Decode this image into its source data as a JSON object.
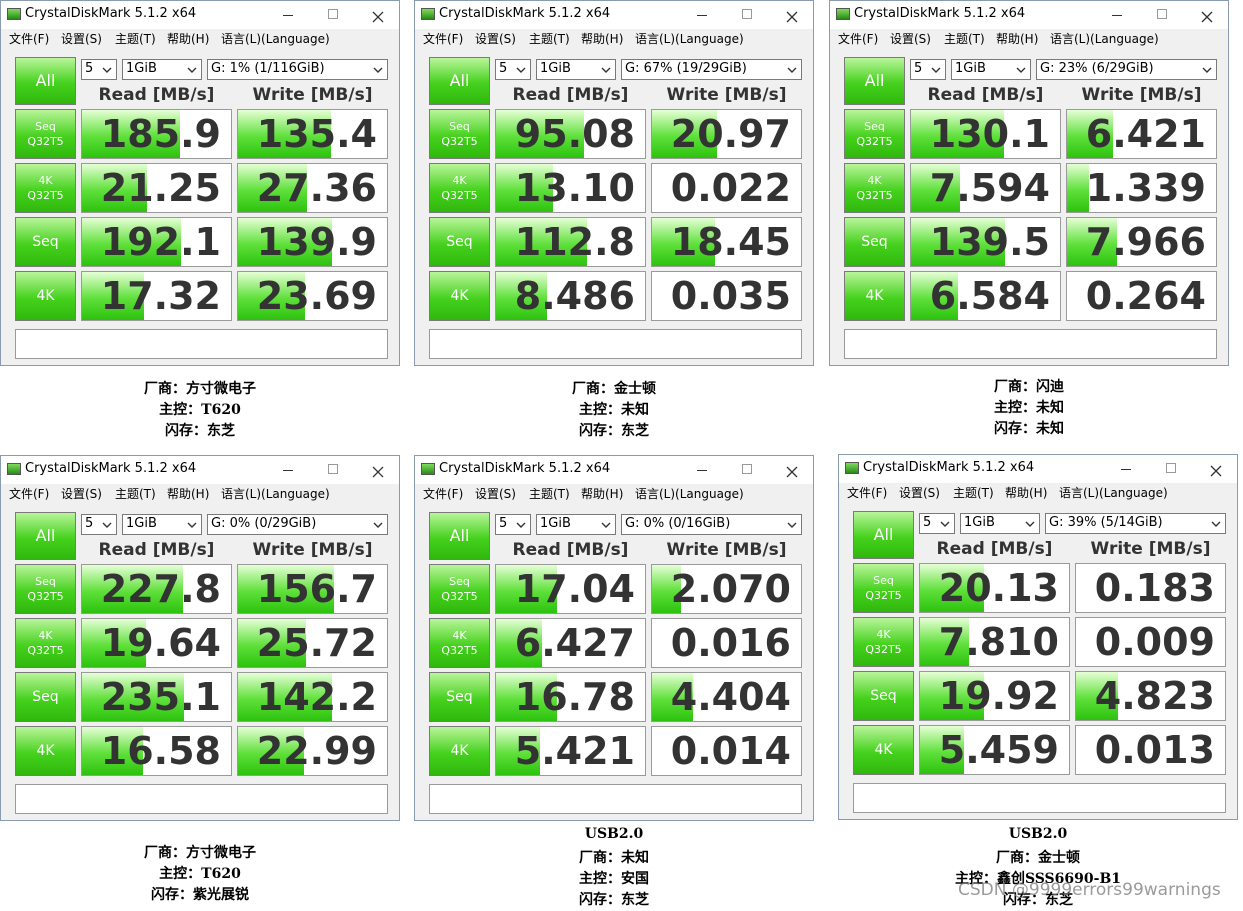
{
  "app": {
    "title": "CrystalDiskMark 5.1.2 x64",
    "menu": [
      "文件(F)",
      "设置(S)",
      "主题(T)",
      "帮助(H)",
      "语言(L)(Language)"
    ],
    "all": "All",
    "read_header": "Read [MB/s]",
    "write_header": "Write [MB/s]",
    "row_labels": [
      [
        "Seq",
        "Q32T5"
      ],
      [
        "4K",
        "Q32T5"
      ],
      [
        "Seq"
      ],
      [
        "4K"
      ]
    ]
  },
  "windows": [
    {
      "count": "5",
      "size": "1GiB",
      "drive": "G: 1% (1/116GiB)",
      "read": [
        "185.9",
        "21.25",
        "192.1",
        "17.32"
      ],
      "write": [
        "135.4",
        "27.36",
        "139.9",
        "23.69"
      ],
      "caption": [
        "厂商：方寸微电子",
        "主控：T620",
        "闪存：东芝"
      ]
    },
    {
      "count": "5",
      "size": "1GiB",
      "drive": "G: 67% (19/29GiB)",
      "read": [
        "95.08",
        "13.10",
        "112.8",
        "8.486"
      ],
      "write": [
        "20.97",
        "0.022",
        "18.45",
        "0.035"
      ],
      "caption": [
        "厂商：金士顿",
        "主控：未知",
        "闪存：东芝"
      ]
    },
    {
      "count": "5",
      "size": "1GiB",
      "drive": "G: 23% (6/29GiB)",
      "read": [
        "130.1",
        "7.594",
        "139.5",
        "6.584"
      ],
      "write": [
        "6.421",
        "1.339",
        "7.966",
        "0.264"
      ],
      "caption": [
        "厂商：闪迪",
        "主控：未知",
        "闪存：未知"
      ]
    },
    {
      "count": "5",
      "size": "1GiB",
      "drive": "G: 0% (0/29GiB)",
      "read": [
        "227.8",
        "19.64",
        "235.1",
        "16.58"
      ],
      "write": [
        "156.7",
        "25.72",
        "142.2",
        "22.99"
      ],
      "caption": [
        "厂商：方寸微电子",
        "主控：T620",
        "闪存：紫光展锐"
      ]
    },
    {
      "count": "5",
      "size": "1GiB",
      "drive": "G: 0% (0/16GiB)",
      "read": [
        "17.04",
        "6.427",
        "16.78",
        "5.421"
      ],
      "write": [
        "2.070",
        "0.016",
        "4.404",
        "0.014"
      ],
      "caption": [
        "USB2.0",
        "厂商：未知",
        "主控：安国",
        "闪存：东芝"
      ]
    },
    {
      "count": "5",
      "size": "1GiB",
      "drive": "G: 39% (5/14GiB)",
      "read": [
        "20.13",
        "7.810",
        "19.92",
        "5.459"
      ],
      "write": [
        "0.183",
        "0.009",
        "4.823",
        "0.013"
      ],
      "caption": [
        "USB2.0",
        "厂商：金士顿",
        "主控：鑫创SSS6690-B1",
        "闪存：东芝"
      ]
    }
  ],
  "watermark": "CSDN @9999errors99warnings"
}
